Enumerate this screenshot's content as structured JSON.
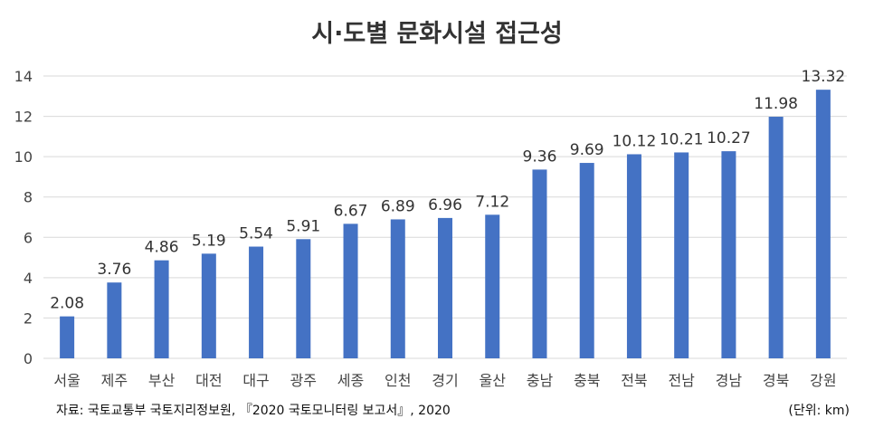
{
  "chart_data": {
    "type": "bar",
    "title": "시·도별 문화시설 접근성",
    "categories": [
      "서울",
      "제주",
      "부산",
      "대전",
      "대구",
      "광주",
      "세종",
      "인천",
      "경기",
      "울산",
      "충남",
      "충북",
      "전북",
      "전남",
      "경남",
      "경북",
      "강원"
    ],
    "values": [
      2.08,
      3.76,
      4.86,
      5.19,
      5.54,
      5.91,
      6.67,
      6.89,
      6.96,
      7.12,
      9.36,
      9.69,
      10.12,
      10.21,
      10.27,
      11.98,
      13.32
    ],
    "value_labels": [
      "2.08",
      "3.76",
      "4.86",
      "5.19",
      "5.54",
      "5.91",
      "6.67",
      "6.89",
      "6.96",
      "7.12",
      "9.36",
      "9.69",
      "10.12",
      "10.21",
      "10.27",
      "11.98",
      "13.32"
    ],
    "ylim": [
      0,
      14
    ],
    "yticks": [
      "0",
      "2",
      "4",
      "6",
      "8",
      "10",
      "12",
      "14"
    ],
    "grid": true,
    "xlabel": "",
    "ylabel": "",
    "bar_color": "#4472C4",
    "grid_color": "#d9d9d9"
  },
  "footer": {
    "source": "자료: 국토교통부 국토지리정보원, 『2020 국토모니터링 보고서』, 2020",
    "unit": "(단위: km)"
  }
}
